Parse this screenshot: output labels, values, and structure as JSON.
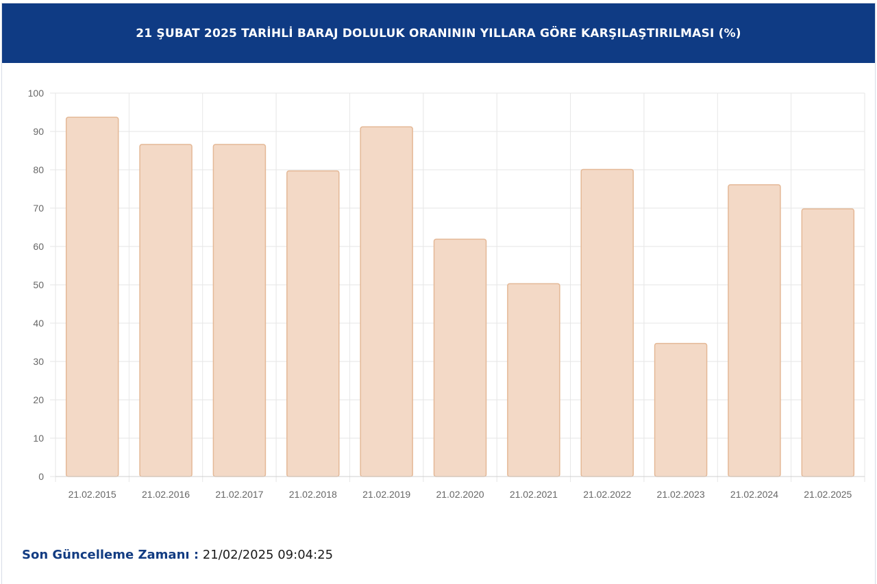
{
  "header": {
    "title": "21 ŞUBAT 2025 TARİHLİ BARAJ DOLULUK ORANININ YILLARA GÖRE KARŞILAŞTIRILMASI (%)"
  },
  "footer": {
    "label": "Son Güncelleme Zamanı :",
    "value": "21/02/2025 09:04:25"
  },
  "colors": {
    "header_bg": "#0f3b84",
    "bar_fill": "#f3d9c6",
    "bar_stroke": "#e4b896",
    "grid": "#e6e6e6"
  },
  "chart_data": {
    "type": "bar",
    "title": "21 ŞUBAT 2025 TARİHLİ BARAJ DOLULUK ORANININ YILLARA GÖRE KARŞILAŞTIRILMASI (%)",
    "categories": [
      "21.02.2015",
      "21.02.2016",
      "21.02.2017",
      "21.02.2018",
      "21.02.2019",
      "21.02.2020",
      "21.02.2021",
      "21.02.2022",
      "21.02.2023",
      "21.02.2024",
      "21.02.2025"
    ],
    "values": [
      93.7,
      86.6,
      86.6,
      79.7,
      91.2,
      61.9,
      50.3,
      80.1,
      34.7,
      76.1,
      69.8
    ],
    "ylim": [
      0,
      100
    ],
    "yticks": [
      0,
      10,
      20,
      30,
      40,
      50,
      60,
      70,
      80,
      90,
      100
    ],
    "grid": true,
    "legend": "none"
  }
}
